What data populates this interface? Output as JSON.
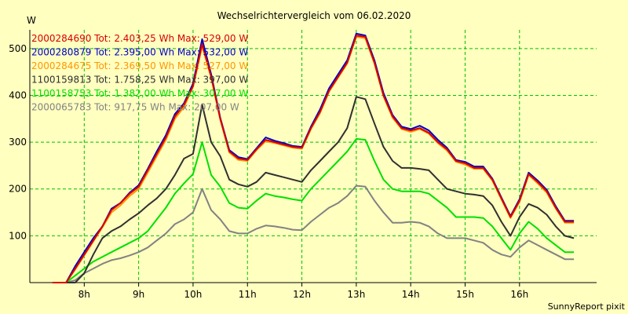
{
  "chart_data": {
    "type": "line",
    "title": "Wechselrichtervergleich vom 06.02.2020",
    "ylabel": "W",
    "xlabel": "",
    "footer": "SunnyReport pixit",
    "grid": true,
    "legend_position": "top-left",
    "ylim": [
      0,
      540
    ],
    "y_ticks": [
      100,
      200,
      300,
      400,
      500
    ],
    "x_hours": [
      8,
      9,
      10,
      11,
      12,
      13,
      14,
      15,
      16
    ],
    "x_tick_labels": [
      "8h",
      "9h",
      "10h",
      "11h",
      "12h",
      "13h",
      "14h",
      "15h",
      "16h"
    ],
    "x": [
      "07:25",
      "07:40",
      "07:50",
      "08:00",
      "08:10",
      "08:20",
      "08:30",
      "08:40",
      "08:50",
      "09:00",
      "09:10",
      "09:20",
      "09:30",
      "09:40",
      "09:50",
      "10:00",
      "10:10",
      "10:20",
      "10:30",
      "10:40",
      "10:50",
      "11:00",
      "11:10",
      "11:20",
      "11:30",
      "11:40",
      "11:50",
      "12:00",
      "12:10",
      "12:20",
      "12:30",
      "12:40",
      "12:50",
      "13:00",
      "13:10",
      "13:20",
      "13:30",
      "13:40",
      "13:50",
      "14:00",
      "14:10",
      "14:20",
      "14:30",
      "14:40",
      "14:50",
      "15:00",
      "15:10",
      "15:20",
      "15:30",
      "15:40",
      "15:50",
      "16:00",
      "16:10",
      "16:20",
      "16:30",
      "16:40",
      "16:50",
      "17:00"
    ],
    "series": [
      {
        "name": "2000284690 Tot: 2.403,25 Wh Max: 529,00 W",
        "color": "#d80000",
        "values": [
          0,
          0,
          30,
          60,
          90,
          120,
          155,
          170,
          190,
          205,
          240,
          275,
          310,
          355,
          380,
          420,
          510,
          440,
          350,
          280,
          265,
          262,
          285,
          305,
          300,
          295,
          290,
          288,
          330,
          365,
          410,
          440,
          470,
          528,
          525,
          470,
          400,
          355,
          330,
          325,
          330,
          320,
          300,
          285,
          260,
          255,
          245,
          245,
          220,
          180,
          140,
          175,
          232,
          215,
          195,
          160,
          130,
          130
        ]
      },
      {
        "name": "2000280879 Tot: 2.395,00 Wh Max: 532,00 W",
        "color": "#0000c8",
        "values": [
          0,
          0,
          35,
          65,
          95,
          120,
          158,
          170,
          192,
          208,
          243,
          280,
          315,
          360,
          383,
          425,
          520,
          445,
          352,
          283,
          268,
          264,
          287,
          310,
          303,
          298,
          292,
          290,
          333,
          370,
          415,
          445,
          475,
          532,
          528,
          475,
          405,
          358,
          333,
          328,
          335,
          325,
          305,
          288,
          262,
          258,
          248,
          248,
          222,
          182,
          142,
          178,
          235,
          218,
          198,
          163,
          132,
          132
        ]
      },
      {
        "name": "2000284675 Tot: 2.369,50 Wh Max: 527,00 W",
        "color": "#ff9600",
        "values": [
          0,
          0,
          28,
          58,
          88,
          118,
          150,
          165,
          185,
          200,
          235,
          270,
          305,
          350,
          375,
          418,
          505,
          438,
          348,
          278,
          262,
          260,
          283,
          302,
          298,
          293,
          288,
          286,
          328,
          362,
          408,
          438,
          468,
          525,
          522,
          468,
          398,
          352,
          328,
          322,
          328,
          318,
          298,
          282,
          258,
          252,
          243,
          243,
          218,
          178,
          138,
          172,
          230,
          212,
          192,
          158,
          128,
          128
        ]
      },
      {
        "name": "1100159813 Tot: 1.758,25 Wh Max: 397,00 W",
        "color": "#303030",
        "values": [
          0,
          0,
          0,
          20,
          60,
          95,
          110,
          120,
          135,
          148,
          165,
          180,
          200,
          230,
          265,
          275,
          380,
          300,
          270,
          220,
          210,
          205,
          215,
          235,
          230,
          225,
          220,
          215,
          240,
          260,
          280,
          300,
          330,
          397,
          392,
          340,
          290,
          260,
          245,
          245,
          243,
          240,
          220,
          200,
          195,
          190,
          188,
          185,
          165,
          130,
          100,
          140,
          168,
          160,
          145,
          120,
          100,
          95
        ]
      },
      {
        "name": "1100158753 Tot: 1.382,00 Wh Max: 307,00 W",
        "color": "#00e000",
        "values": [
          0,
          0,
          15,
          30,
          45,
          55,
          65,
          75,
          85,
          95,
          110,
          135,
          160,
          190,
          212,
          232,
          300,
          230,
          205,
          170,
          160,
          158,
          175,
          190,
          185,
          182,
          178,
          175,
          200,
          220,
          240,
          260,
          280,
          307,
          305,
          260,
          220,
          200,
          195,
          195,
          195,
          190,
          175,
          160,
          140,
          140,
          140,
          138,
          120,
          95,
          70,
          105,
          130,
          115,
          95,
          80,
          65,
          65
        ]
      },
      {
        "name": "2000065783 Tot: 917,75 Wh Max: 207,00 W",
        "color": "#828282",
        "values": [
          0,
          0,
          5,
          20,
          30,
          40,
          48,
          52,
          58,
          65,
          75,
          90,
          105,
          125,
          135,
          150,
          200,
          155,
          135,
          110,
          105,
          105,
          115,
          122,
          120,
          117,
          113,
          112,
          130,
          145,
          160,
          170,
          185,
          207,
          205,
          175,
          150,
          128,
          128,
          130,
          128,
          120,
          105,
          95,
          95,
          95,
          90,
          85,
          70,
          60,
          55,
          75,
          90,
          80,
          70,
          60,
          50,
          50
        ]
      }
    ]
  }
}
